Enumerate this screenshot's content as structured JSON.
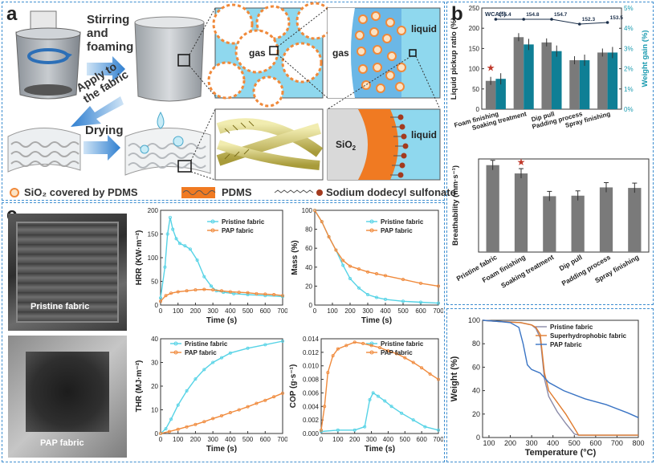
{
  "panel_labels": {
    "a": "a",
    "b": "b",
    "c": "c"
  },
  "schematic": {
    "arrow1": [
      "Stirring",
      "and",
      "foaming"
    ],
    "arrow2": [
      "Apply to",
      "the fabric"
    ],
    "arrow3": "Drying",
    "gas1": "gas",
    "gas2": "gas",
    "liquid1": "liquid",
    "liquid2": "liquid",
    "sio2_prefix": "SiO",
    "sio2_sub": "2",
    "legend": [
      {
        "label": "SiO₂ covered by PDMS",
        "icon": "sio2-pdms-circle-icon"
      },
      {
        "label": "PDMS",
        "icon": "pdms-wave-icon"
      },
      {
        "label": "Sodium dodecyl sulfonate",
        "icon": "sds-chain-icon"
      }
    ],
    "colors": {
      "orange": "#f0893a",
      "liquid": "#8fd8ee",
      "silica": "#d9d9d9",
      "pdms_layer": "#f07a22",
      "beaker": "#9aa0a6"
    }
  },
  "photos": {
    "pristine": "Pristine fabric",
    "pap": "PAP fabric"
  },
  "chart_data": [
    {
      "id": "b-top",
      "type": "bar",
      "categories": [
        "Foam finishing",
        "Soaking treatment",
        "Dip pull",
        "Padding process",
        "Spray finishing"
      ],
      "ylabel": "Liquid pickup ratio (%)",
      "y2label": "Weight gain (%)",
      "ylim": [
        0,
        250
      ],
      "yticks": [
        0,
        50,
        100,
        150,
        200,
        250
      ],
      "y2lim": [
        0,
        5
      ],
      "y2ticks": [
        "0%",
        "1%",
        "2%",
        "3%",
        "4%",
        "5%"
      ],
      "series": [
        {
          "values": [
            70,
            178,
            165,
            121,
            140
          ],
          "color": "#7a7a7a"
        },
        {
          "values": [
            1.5,
            3.2,
            2.87,
            2.42,
            2.8
          ],
          "color": "#0f7f95",
          "axis": "right"
        }
      ],
      "wca_label": "WCA(°)",
      "wca_values": [
        "155.4",
        "154.8",
        "154.7",
        "152.3",
        "153.5"
      ],
      "star_on": "Foam finishing",
      "colors": {
        "axis_right": "#1a9bb0",
        "star": "#c0392b"
      }
    },
    {
      "id": "b-mid",
      "type": "bar",
      "categories": [
        "Pristine fabric",
        "Foam finishing",
        "Soaking treatment",
        "Dip pull",
        "Padding process",
        "Spray finishing"
      ],
      "ylabel": "Breathability (mm·s⁻¹)",
      "ylim": [
        0,
        900
      ],
      "values": [
        840,
        760,
        540,
        545,
        625,
        620
      ],
      "star_on": "Foam finishing",
      "colors": {
        "bar": "#7a7a7a",
        "star": "#c0392b"
      }
    },
    {
      "id": "c-hrr",
      "type": "line",
      "xlabel": "Time (s)",
      "ylabel": "HRR (KW·m⁻²)",
      "xlim": [
        0,
        700
      ],
      "ylim": [
        0,
        200
      ],
      "xticks": [
        0,
        100,
        200,
        300,
        400,
        500,
        600,
        700
      ],
      "yticks": [
        0,
        50,
        100,
        150,
        200
      ],
      "series": [
        {
          "name": "Pristine fabric",
          "color": "#56d3e6",
          "x": [
            0,
            25,
            40,
            55,
            70,
            90,
            110,
            140,
            170,
            210,
            250,
            290,
            320,
            360,
            420,
            500,
            600,
            700
          ],
          "y": [
            15,
            80,
            150,
            185,
            160,
            140,
            130,
            125,
            118,
            95,
            60,
            40,
            30,
            27,
            24,
            22,
            20,
            18
          ]
        },
        {
          "name": "PAP fabric",
          "color": "#f08a3c",
          "x": [
            0,
            30,
            60,
            100,
            150,
            200,
            250,
            300,
            350,
            400,
            450,
            500,
            550,
            600,
            650,
            700
          ],
          "y": [
            8,
            20,
            25,
            28,
            30,
            32,
            33,
            32,
            30,
            28,
            27,
            26,
            24,
            23,
            22,
            20
          ]
        }
      ]
    },
    {
      "id": "c-mass",
      "type": "line",
      "xlabel": "Time (s)",
      "ylabel": "Mass (%)",
      "xlim": [
        0,
        700
      ],
      "ylim": [
        0,
        100
      ],
      "xticks": [
        0,
        100,
        200,
        300,
        400,
        500,
        600,
        700
      ],
      "yticks": [
        0,
        20,
        40,
        60,
        80,
        100
      ],
      "series": [
        {
          "name": "Pristine fabric",
          "color": "#56d3e6",
          "x": [
            0,
            40,
            80,
            120,
            160,
            200,
            250,
            300,
            350,
            400,
            500,
            600,
            700
          ],
          "y": [
            100,
            88,
            72,
            58,
            42,
            28,
            18,
            11,
            8,
            6,
            4,
            3,
            2
          ]
        },
        {
          "name": "PAP fabric",
          "color": "#f08a3c",
          "x": [
            0,
            40,
            80,
            120,
            160,
            200,
            250,
            300,
            350,
            400,
            500,
            600,
            700
          ],
          "y": [
            100,
            88,
            72,
            58,
            47,
            41,
            38,
            35,
            33,
            31,
            27,
            23,
            20
          ]
        }
      ]
    },
    {
      "id": "c-thr",
      "type": "line",
      "xlabel": "Time (s)",
      "ylabel": "THR (MJ·m⁻²)",
      "xlim": [
        0,
        700
      ],
      "ylim": [
        0,
        40
      ],
      "xticks": [
        0,
        100,
        200,
        300,
        400,
        500,
        600,
        700
      ],
      "yticks": [
        0,
        10,
        20,
        30,
        40
      ],
      "series": [
        {
          "name": "Pristine fabric",
          "color": "#56d3e6",
          "x": [
            0,
            30,
            60,
            100,
            150,
            200,
            250,
            300,
            350,
            400,
            500,
            600,
            700
          ],
          "y": [
            0,
            2,
            6,
            12,
            18,
            23,
            27,
            30,
            32,
            34,
            36,
            37.5,
            39
          ]
        },
        {
          "name": "PAP fabric",
          "color": "#f08a3c",
          "x": [
            0,
            50,
            100,
            150,
            200,
            250,
            300,
            350,
            400,
            450,
            500,
            550,
            600,
            650,
            700
          ],
          "y": [
            0,
            0.8,
            1.8,
            2.8,
            3.8,
            5,
            6.3,
            7.5,
            8.8,
            10,
            11.3,
            12.7,
            14,
            15.5,
            17
          ]
        }
      ]
    },
    {
      "id": "c-cop",
      "type": "line",
      "xlabel": "Time (s)",
      "ylabel": "COP (g·s⁻¹)",
      "xlim": [
        0,
        700
      ],
      "ylim": [
        0,
        0.014
      ],
      "xticks": [
        0,
        100,
        200,
        300,
        400,
        500,
        600,
        700
      ],
      "yticks": [
        "0.000",
        "0.002",
        "0.004",
        "0.006",
        "0.008",
        "0.010",
        "0.012",
        "0.014"
      ],
      "series": [
        {
          "name": "Pristine fabric",
          "color": "#56d3e6",
          "x": [
            0,
            100,
            200,
            260,
            290,
            310,
            340,
            380,
            420,
            480,
            550,
            620,
            700
          ],
          "y": [
            0.0003,
            0.0005,
            0.0005,
            0.001,
            0.005,
            0.006,
            0.0055,
            0.0048,
            0.004,
            0.003,
            0.002,
            0.001,
            0.0005
          ]
        },
        {
          "name": "PAP fabric",
          "color": "#f08a3c",
          "x": [
            0,
            20,
            40,
            70,
            100,
            150,
            200,
            250,
            300,
            350,
            400,
            450,
            500,
            550,
            600,
            650,
            700
          ],
          "y": [
            0.0005,
            0.004,
            0.009,
            0.0115,
            0.0125,
            0.013,
            0.0135,
            0.0133,
            0.013,
            0.0127,
            0.0122,
            0.0118,
            0.0112,
            0.0105,
            0.0097,
            0.0088,
            0.008
          ]
        }
      ]
    },
    {
      "id": "tga",
      "type": "line",
      "xlabel": "Temperature (°C)",
      "ylabel": "Weight (%)",
      "xlim": [
        70,
        800
      ],
      "ylim": [
        0,
        100
      ],
      "xticks": [
        100,
        200,
        300,
        400,
        500,
        600,
        700,
        800
      ],
      "yticks": [
        0,
        20,
        40,
        60,
        80,
        100
      ],
      "series": [
        {
          "name": "Pristine fabric",
          "color": "#8a8aa8",
          "x": [
            70,
            150,
            250,
            300,
            320,
            340,
            360,
            380,
            420,
            460,
            500,
            520,
            800
          ],
          "y": [
            100,
            99,
            98,
            96,
            93,
            85,
            50,
            35,
            22,
            12,
            3,
            2,
            2
          ]
        },
        {
          "name": "Superhydrophobic fabric",
          "color": "#e07b2e",
          "x": [
            70,
            150,
            250,
            300,
            320,
            340,
            360,
            380,
            420,
            460,
            500,
            520,
            800
          ],
          "y": [
            100,
            99,
            98,
            96,
            94,
            88,
            55,
            40,
            30,
            20,
            8,
            2,
            2
          ]
        },
        {
          "name": "PAP fabric",
          "color": "#3a74c4",
          "x": [
            70,
            150,
            200,
            240,
            260,
            280,
            300,
            340,
            380,
            450,
            550,
            650,
            750,
            800
          ],
          "y": [
            100,
            99,
            98,
            94,
            80,
            62,
            58,
            55,
            47,
            40,
            33,
            28,
            21,
            17
          ]
        }
      ]
    }
  ]
}
